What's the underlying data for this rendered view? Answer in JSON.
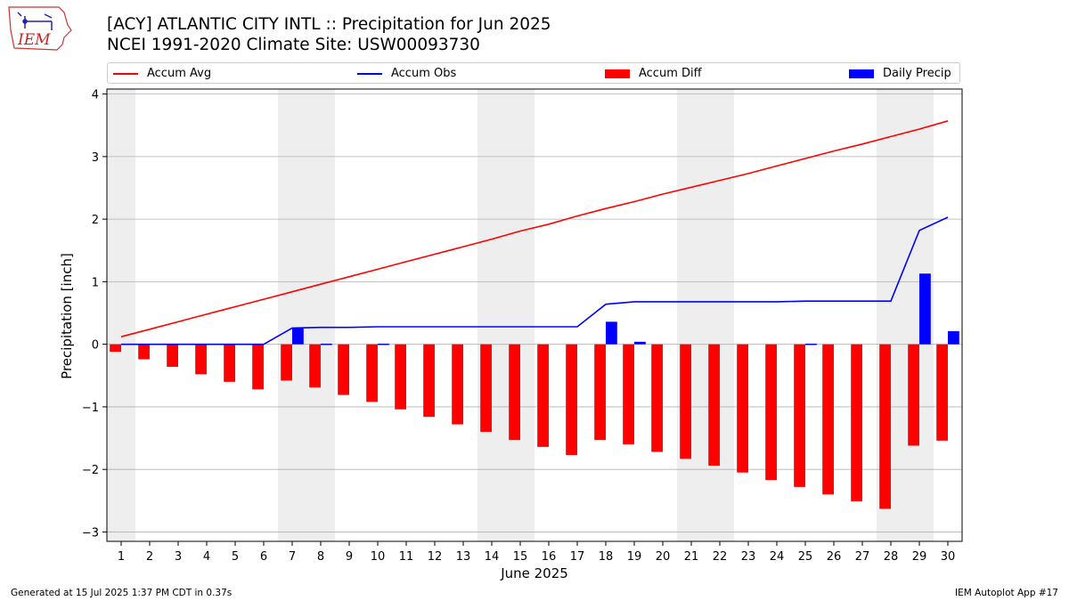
{
  "header": {
    "title_line1": "[ACY] ATLANTIC CITY INTL :: Precipitation for Jun 2025",
    "title_line2": "NCEI 1991-2020 Climate Site: USW00093730",
    "logo_text": "IEM"
  },
  "footer": {
    "generated": "Generated at 15 Jul 2025 1:37 PM CDT in 0.37s",
    "app": "IEM Autoplot App #17"
  },
  "colors": {
    "avg": "#ff0000",
    "obs": "#0000ff",
    "diff": "#ff0000",
    "daily": "#0000ff",
    "weekend_band": "#eeeeee",
    "grid": "#b0b0b0"
  },
  "chart_data": {
    "type": "bar",
    "xlabel": "June 2025",
    "ylabel": "Precipitation [inch]",
    "x": [
      1,
      2,
      3,
      4,
      5,
      6,
      7,
      8,
      9,
      10,
      11,
      12,
      13,
      14,
      15,
      16,
      17,
      18,
      19,
      20,
      21,
      22,
      23,
      24,
      25,
      26,
      27,
      28,
      29,
      30
    ],
    "ylim": [
      -3.15,
      4.08
    ],
    "yticks": [
      -3,
      -2,
      -1,
      0,
      1,
      2,
      3,
      4
    ],
    "ytick_labels": [
      "−3",
      "−2",
      "−1",
      "0",
      "1",
      "2",
      "3",
      "4"
    ],
    "grid": "y",
    "legend_position": "top",
    "shaded_days": [
      [
        1,
        1
      ],
      [
        7,
        8
      ],
      [
        14,
        15
      ],
      [
        21,
        22
      ],
      [
        28,
        29
      ]
    ],
    "series": [
      {
        "name": "Accum Avg",
        "kind": "line",
        "values": [
          0.12,
          0.24,
          0.36,
          0.48,
          0.6,
          0.72,
          0.84,
          0.96,
          1.08,
          1.2,
          1.32,
          1.44,
          1.56,
          1.68,
          1.81,
          1.92,
          2.05,
          2.17,
          2.28,
          2.4,
          2.51,
          2.62,
          2.73,
          2.85,
          2.97,
          3.09,
          3.2,
          3.32,
          3.44,
          3.57
        ]
      },
      {
        "name": "Accum Obs",
        "kind": "line",
        "values": [
          0.0,
          0.0,
          0.0,
          0.0,
          0.0,
          0.0,
          0.26,
          0.27,
          0.27,
          0.28,
          0.28,
          0.28,
          0.28,
          0.28,
          0.28,
          0.28,
          0.28,
          0.64,
          0.68,
          0.68,
          0.68,
          0.68,
          0.68,
          0.68,
          0.69,
          0.69,
          0.69,
          0.69,
          1.82,
          2.03
        ]
      },
      {
        "name": "Accum Diff",
        "kind": "bar",
        "values": [
          -0.12,
          -0.24,
          -0.36,
          -0.48,
          -0.6,
          -0.72,
          -0.58,
          -0.69,
          -0.81,
          -0.92,
          -1.04,
          -1.16,
          -1.28,
          -1.4,
          -1.53,
          -1.64,
          -1.77,
          -1.53,
          -1.6,
          -1.72,
          -1.83,
          -1.94,
          -2.05,
          -2.17,
          -2.28,
          -2.4,
          -2.51,
          -2.63,
          -1.62,
          -1.54
        ]
      },
      {
        "name": "Daily Precip",
        "kind": "bar",
        "values": [
          0.0,
          0.0,
          0.0,
          0.0,
          0.0,
          0.0,
          0.26,
          0.01,
          0.0,
          0.01,
          0.0,
          0.0,
          0.0,
          0.0,
          0.0,
          0.0,
          0.0,
          0.36,
          0.04,
          0.0,
          0.0,
          0.0,
          0.0,
          0.0,
          0.01,
          0.0,
          0.0,
          0.0,
          1.13,
          0.21
        ]
      }
    ]
  }
}
